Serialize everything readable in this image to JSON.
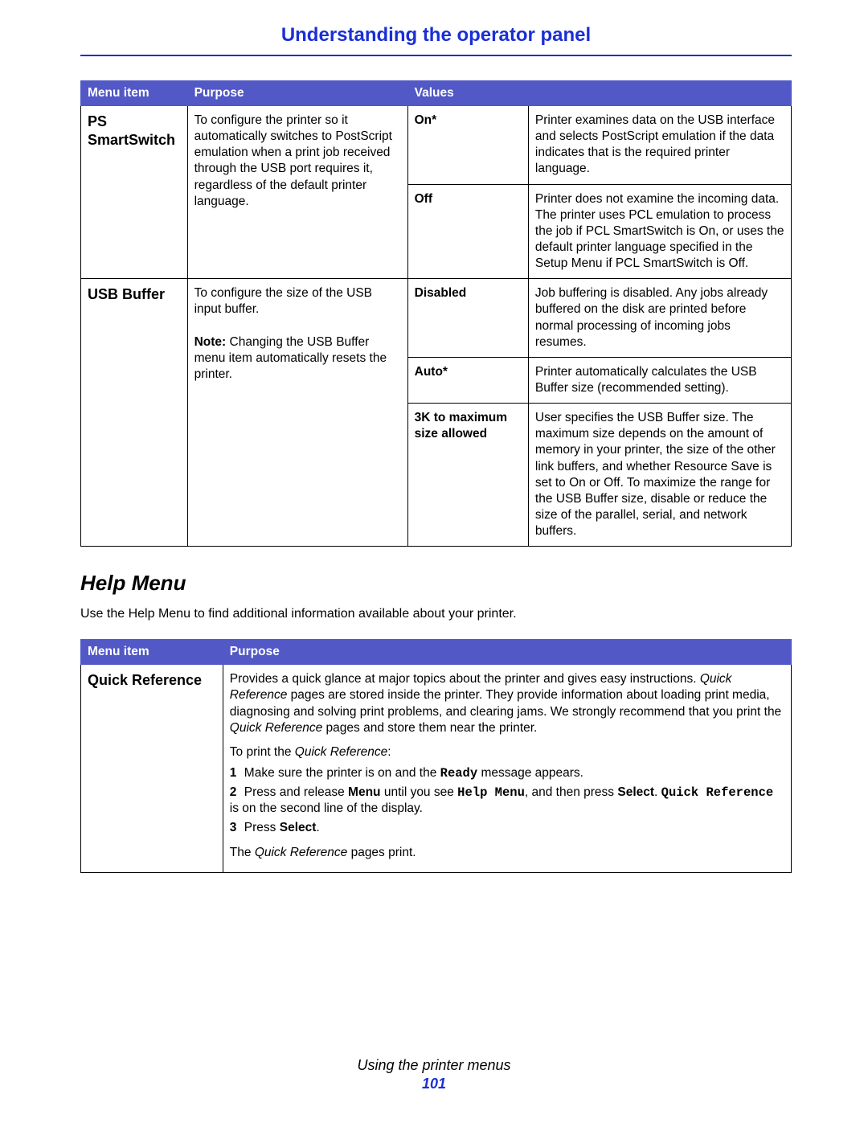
{
  "colors": {
    "heading_blue": "#1a2fd6",
    "rule_blue": "#1a2fd6",
    "table_header_bg": "#5258c5",
    "table_header_border": "#5258c5",
    "table_cell_border": "#000000",
    "page_number": "#1a2fd6"
  },
  "page_title": "Understanding the operator panel",
  "table1": {
    "headers": {
      "col1": "Menu item",
      "col2": "Purpose",
      "col3": "Values"
    },
    "col_widths_pct": [
      15,
      31,
      17,
      37
    ],
    "rows": [
      {
        "menu_item": "PS SmartSwitch",
        "purpose": "To configure the printer so it automatically switches to PostScript emulation when a print job received through the USB port requires it, regardless of the default printer language.",
        "values": [
          {
            "label": "On*",
            "desc": "Printer examines data on the USB interface and selects PostScript emulation if the data indicates that is the required printer language."
          },
          {
            "label": "Off",
            "desc": "Printer does not examine the incoming data. The printer uses PCL emulation to process the job if PCL SmartSwitch is On, or uses the default printer language specified in the Setup Menu if PCL SmartSwitch is Off."
          }
        ]
      },
      {
        "menu_item": "USB Buffer",
        "purpose_main": "To configure the size of the USB input buffer.",
        "purpose_note_label": "Note:",
        "purpose_note": " Changing the USB Buffer menu item automatically resets the printer.",
        "values": [
          {
            "label": "Disabled",
            "desc": "Job buffering is disabled. Any jobs already buffered on the disk are printed before normal processing of incoming jobs resumes."
          },
          {
            "label": "Auto*",
            "desc": "Printer automatically calculates the USB Buffer size (recommended setting)."
          },
          {
            "label": "3K to maximum size allowed",
            "desc": "User specifies the USB Buffer size. The maximum size depends on the amount of memory in your printer, the size of the other link buffers, and whether Resource Save is set to On or Off. To maximize the range for the USB Buffer size, disable or reduce the size of the parallel, serial, and network buffers."
          }
        ]
      }
    ]
  },
  "help_menu": {
    "heading": "Help Menu",
    "intro": "Use the Help Menu to find additional information available about your printer.",
    "table": {
      "headers": {
        "col1": "Menu item",
        "col2": "Purpose"
      },
      "col_widths_pct": [
        20,
        80
      ],
      "row": {
        "menu_item": "Quick Reference",
        "para_pre": "Provides a quick glance at major topics about the printer and gives easy instructions. ",
        "para_italic1": "Quick Reference",
        "para_mid": " pages are stored inside the printer. They provide information about loading print media, diagnosing and solving print problems, and clearing jams. We strongly recommend that you print the ",
        "para_italic2": "Quick Reference",
        "para_post": " pages and store them near the printer.",
        "print_intro_pre": "To print the ",
        "print_intro_italic": "Quick Reference",
        "print_intro_post": ":",
        "steps": {
          "s1_pre": "Make sure the printer is on and the ",
          "s1_mono": "Ready",
          "s1_post": " message appears.",
          "s2_pre": "Press and release ",
          "s2_bold1": "Menu",
          "s2_mid1": " until you see ",
          "s2_mono1": "Help Menu",
          "s2_mid2": ", and then press ",
          "s2_bold2": "Select",
          "s2_mid3": ". ",
          "s2_mono2": "Quick Reference",
          "s2_post": " is on the second line of the display.",
          "s3_pre": "Press ",
          "s3_bold": "Select",
          "s3_post": "."
        },
        "outro_pre": "The ",
        "outro_italic": "Quick Reference",
        "outro_post": " pages print."
      }
    }
  },
  "footer": {
    "text": "Using the printer menus",
    "page": "101"
  }
}
